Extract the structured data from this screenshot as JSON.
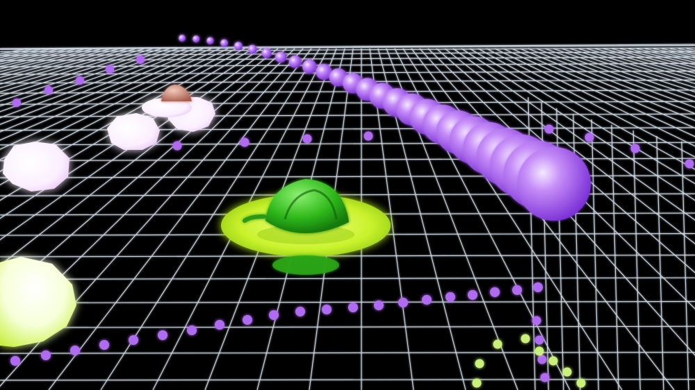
{
  "scene": {
    "background": "#000000",
    "grid_color": "#e6f2ff",
    "pellet_color": "#b06cf0",
    "pellet_color_green": "#c8f07a",
    "snake_color": "#a95cf0",
    "player_color": "#c7f23a",
    "player_dome_color": "#2ec41a",
    "white_blob_color": "#fff4ff",
    "enemy_cap_color": "#d9998a",
    "lime_blob_color": "#e8ff8a"
  }
}
